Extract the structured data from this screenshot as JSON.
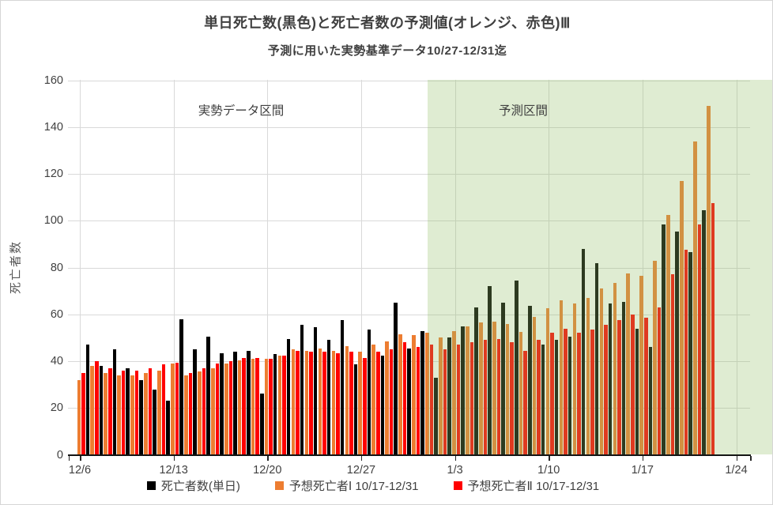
{
  "title": "単日死亡数(黒色)と死亡者数の予測値(オレンジ、赤色)Ⅲ",
  "subtitle": "予測に用いた実勢基準データ10/27-12/31迄",
  "y_axis": {
    "title": "死亡者数",
    "min": 0,
    "max": 160,
    "step": 20
  },
  "x_axis": {
    "week_labels": [
      "12/6",
      "12/13",
      "12/20",
      "12/27",
      "1/3",
      "1/10",
      "1/17",
      "1/24"
    ]
  },
  "region_labels": {
    "actual": "実勢データ区間",
    "forecast": "予測区間"
  },
  "colors": {
    "actual": "#000000",
    "forecast1": "#ED7D31",
    "forecast2": "#FF0000",
    "forecast_region": "rgba(149,192,106,0.30)",
    "gridline": "#d9d9d9",
    "axis_text": "#404040"
  },
  "legend": [
    {
      "id": "actual",
      "label": "死亡者数(単日)",
      "color": "#000000"
    },
    {
      "id": "forecast1",
      "label": "予想死亡者Ⅰ 10/17-12/31",
      "color": "#ED7D31"
    },
    {
      "id": "forecast2",
      "label": "予想死亡者Ⅱ 10/17-12/31",
      "color": "#FF0000"
    }
  ],
  "chart_data": {
    "type": "bar",
    "title": "単日死亡数(黒色)と死亡者数の予測値(オレンジ、赤色)Ⅲ",
    "subtitle": "予測に用いた実勢基準データ10/27-12/31迄",
    "xlabel": "",
    "ylabel": "死亡者数",
    "ylim": [
      0,
      160
    ],
    "grid": true,
    "legend_position": "bottom",
    "forecast_region": {
      "label": "予測区間",
      "start_category": "1/1",
      "end": "beyond 1/24"
    },
    "actual_region_label": "実勢データ区間",
    "categories": [
      "12/6",
      "12/7",
      "12/8",
      "12/9",
      "12/10",
      "12/11",
      "12/12",
      "12/13",
      "12/14",
      "12/15",
      "12/16",
      "12/17",
      "12/18",
      "12/19",
      "12/20",
      "12/21",
      "12/22",
      "12/23",
      "12/24",
      "12/25",
      "12/26",
      "12/27",
      "12/28",
      "12/29",
      "12/30",
      "12/31",
      "1/1",
      "1/2",
      "1/3",
      "1/4",
      "1/5",
      "1/6",
      "1/7",
      "1/8",
      "1/9",
      "1/10",
      "1/11",
      "1/12",
      "1/13",
      "1/14",
      "1/15",
      "1/16",
      "1/17",
      "1/18",
      "1/19",
      "1/20",
      "1/21",
      "1/22"
    ],
    "series": [
      {
        "id": "actual",
        "name": "死亡者数(単日)",
        "color": "#000000",
        "values": [
          47,
          38,
          45,
          37,
          32,
          28,
          23,
          58,
          45,
          50.5,
          43.5,
          44,
          44.5,
          26,
          43,
          49.5,
          55.5,
          54.5,
          49,
          57.5,
          38.5,
          53.5,
          42.5,
          65,
          45.5,
          53,
          33,
          50,
          55,
          63,
          72,
          65,
          74.5,
          63.5,
          47,
          49,
          50.5,
          88,
          82,
          64.5,
          65.5,
          54,
          46,
          98.5,
          95.5,
          86.5,
          104.5,
          null
        ]
      },
      {
        "id": "forecast1",
        "name": "予想死亡者Ⅰ 10/17-12/31",
        "color": "#ED7D31",
        "values": [
          32,
          38,
          35,
          34,
          34,
          35,
          36,
          39,
          34,
          35.5,
          37,
          39,
          40.5,
          41,
          41,
          42.5,
          45,
          44.5,
          45.5,
          44.5,
          46.5,
          44,
          47,
          48.5,
          51.5,
          51,
          52,
          50,
          53,
          55,
          56.5,
          57,
          56,
          52.5,
          59,
          62.5,
          66,
          64.5,
          67,
          71,
          73.5,
          77.5,
          76.5,
          83,
          102.5,
          117,
          134,
          149
        ]
      },
      {
        "id": "forecast2",
        "name": "予想死亡者Ⅱ 10/17-12/31",
        "color": "#FF0000",
        "values": [
          35,
          40,
          37,
          36,
          36,
          37,
          38.5,
          39.5,
          35,
          37,
          39,
          40,
          41.5,
          41.5,
          41,
          42.5,
          44.5,
          44,
          44,
          43.5,
          44,
          41.5,
          44,
          45,
          48,
          46,
          47,
          45,
          47,
          48,
          49,
          49.5,
          48,
          44.5,
          49,
          52,
          54,
          52,
          53.5,
          55.5,
          57.5,
          60,
          58.5,
          63,
          77,
          87.5,
          98.5,
          107.5
        ]
      }
    ]
  }
}
